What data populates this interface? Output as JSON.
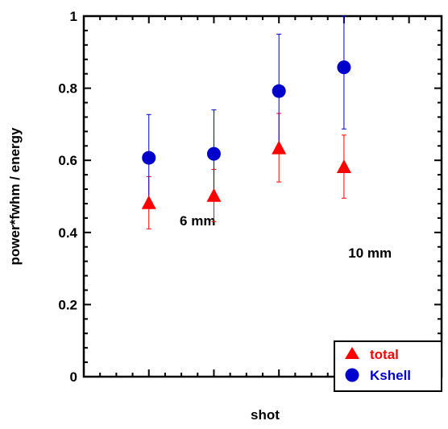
{
  "chart_data": {
    "type": "scatter",
    "xlabel": "shot",
    "ylabel": "power*fwhm / energy",
    "xlim": [
      0,
      5.5
    ],
    "ylim": [
      0,
      1
    ],
    "yticks": [
      {
        "value": 0,
        "label": "0"
      },
      {
        "value": 0.2,
        "label": "0.2"
      },
      {
        "value": 0.4,
        "label": "0.4"
      },
      {
        "value": 0.6,
        "label": "0.6"
      },
      {
        "value": 0.8,
        "label": "0.8"
      },
      {
        "value": 1,
        "label": "1"
      }
    ],
    "grid": false,
    "legend": {
      "position": "bottom-right"
    },
    "annotations": [
      {
        "text": "6 mm",
        "x": 1.75,
        "y": 0.42
      },
      {
        "text": "10 mm",
        "x": 4.4,
        "y": 0.33
      }
    ],
    "series": [
      {
        "name": "total",
        "color": "#ff0000",
        "marker": "triangle",
        "points": [
          {
            "x": 1,
            "y": 0.48,
            "ylow": 0.41,
            "yhigh": 0.555
          },
          {
            "x": 2,
            "y": 0.5,
            "ylow": 0.43,
            "yhigh": 0.575
          },
          {
            "x": 3,
            "y": 0.632,
            "ylow": 0.54,
            "yhigh": 0.73
          },
          {
            "x": 4,
            "y": 0.58,
            "ylow": 0.495,
            "yhigh": 0.67
          }
        ]
      },
      {
        "name": "Kshell",
        "color": "#0000cc",
        "marker": "circle",
        "points": [
          {
            "x": 1,
            "y": 0.607,
            "ylow": 0.485,
            "yhigh": 0.727
          },
          {
            "x": 2,
            "y": 0.618,
            "ylow": 0.495,
            "yhigh": 0.74
          },
          {
            "x": 3,
            "y": 0.792,
            "ylow": 0.635,
            "yhigh": 0.95
          },
          {
            "x": 4,
            "y": 0.858,
            "ylow": 0.687,
            "yhigh": 1.0
          }
        ]
      }
    ]
  }
}
